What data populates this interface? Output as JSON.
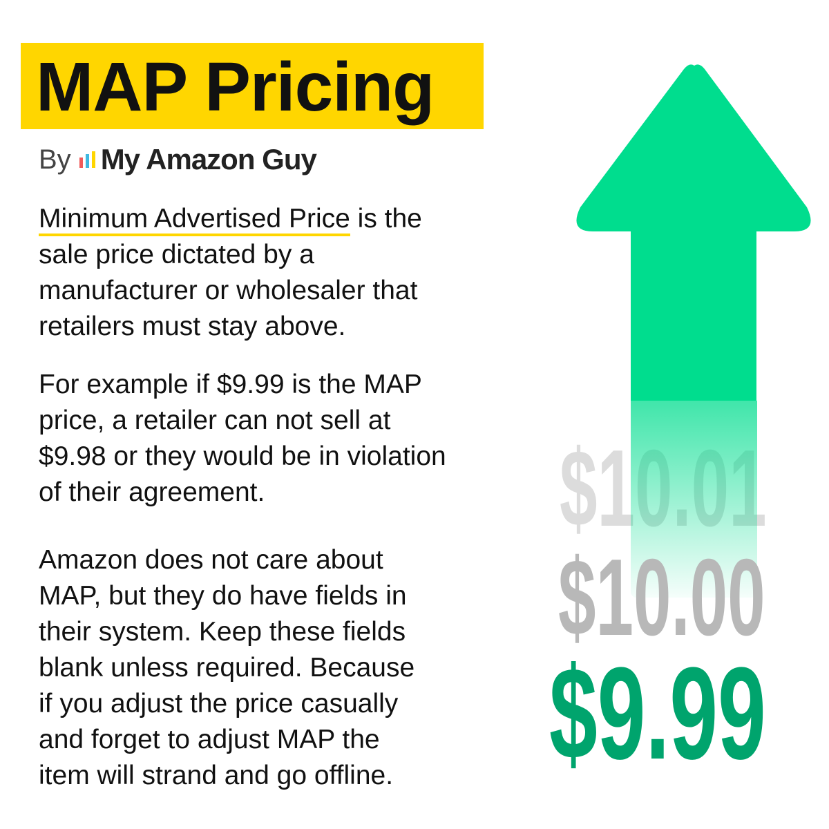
{
  "title": "MAP Pricing",
  "byline": {
    "by": "By",
    "brand": "My Amazon Guy",
    "logo_colors": [
      "#ef5b5b",
      "#3fb8e0",
      "#ffd600"
    ]
  },
  "paragraphs": {
    "p1": {
      "highlight": "Minimum Advertised Price",
      "lines": [
        " is the",
        "sale price dictated by a",
        "manufacturer or wholesaler that",
        "retailers must stay above."
      ]
    },
    "p2": {
      "lines": [
        "For example if $9.99 is the MAP",
        "price, a retailer can not sell at",
        "$9.98 or they would be in violation",
        "of their agreement."
      ]
    },
    "p3": {
      "lines": [
        "Amazon does not care about",
        "MAP, but they do have fields in",
        "their system. Keep these fields",
        "blank unless required. Because",
        "if you adjust the price casually",
        "and forget to adjust MAP the",
        "item will strand and go offline."
      ]
    }
  },
  "prices": [
    "$10.01",
    "$10.00",
    "$9.99"
  ],
  "colors": {
    "accent_yellow": "#ffd600",
    "arrow_green": "#00dd8e",
    "price_green": "#00a46d"
  },
  "icons": {
    "arrow": "up-arrow-icon"
  }
}
